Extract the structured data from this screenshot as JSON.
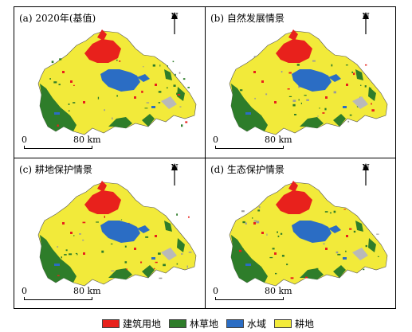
{
  "panels": [
    {
      "title": "(a) 2020年(基值)"
    },
    {
      "title": "(b) 自然发展情景"
    },
    {
      "title": "(c) 耕地保护情景"
    },
    {
      "title": "(d) 生态保护情景"
    }
  ],
  "north_label": "N",
  "scale": {
    "start": "0",
    "end": "80 km"
  },
  "legend": [
    {
      "label": "建筑用地",
      "color": "#e8211c"
    },
    {
      "label": "林草地",
      "color": "#2e7d2a"
    },
    {
      "label": "水域",
      "color": "#2b6dc4"
    },
    {
      "label": "耕地",
      "color": "#f2ea3a"
    }
  ]
}
